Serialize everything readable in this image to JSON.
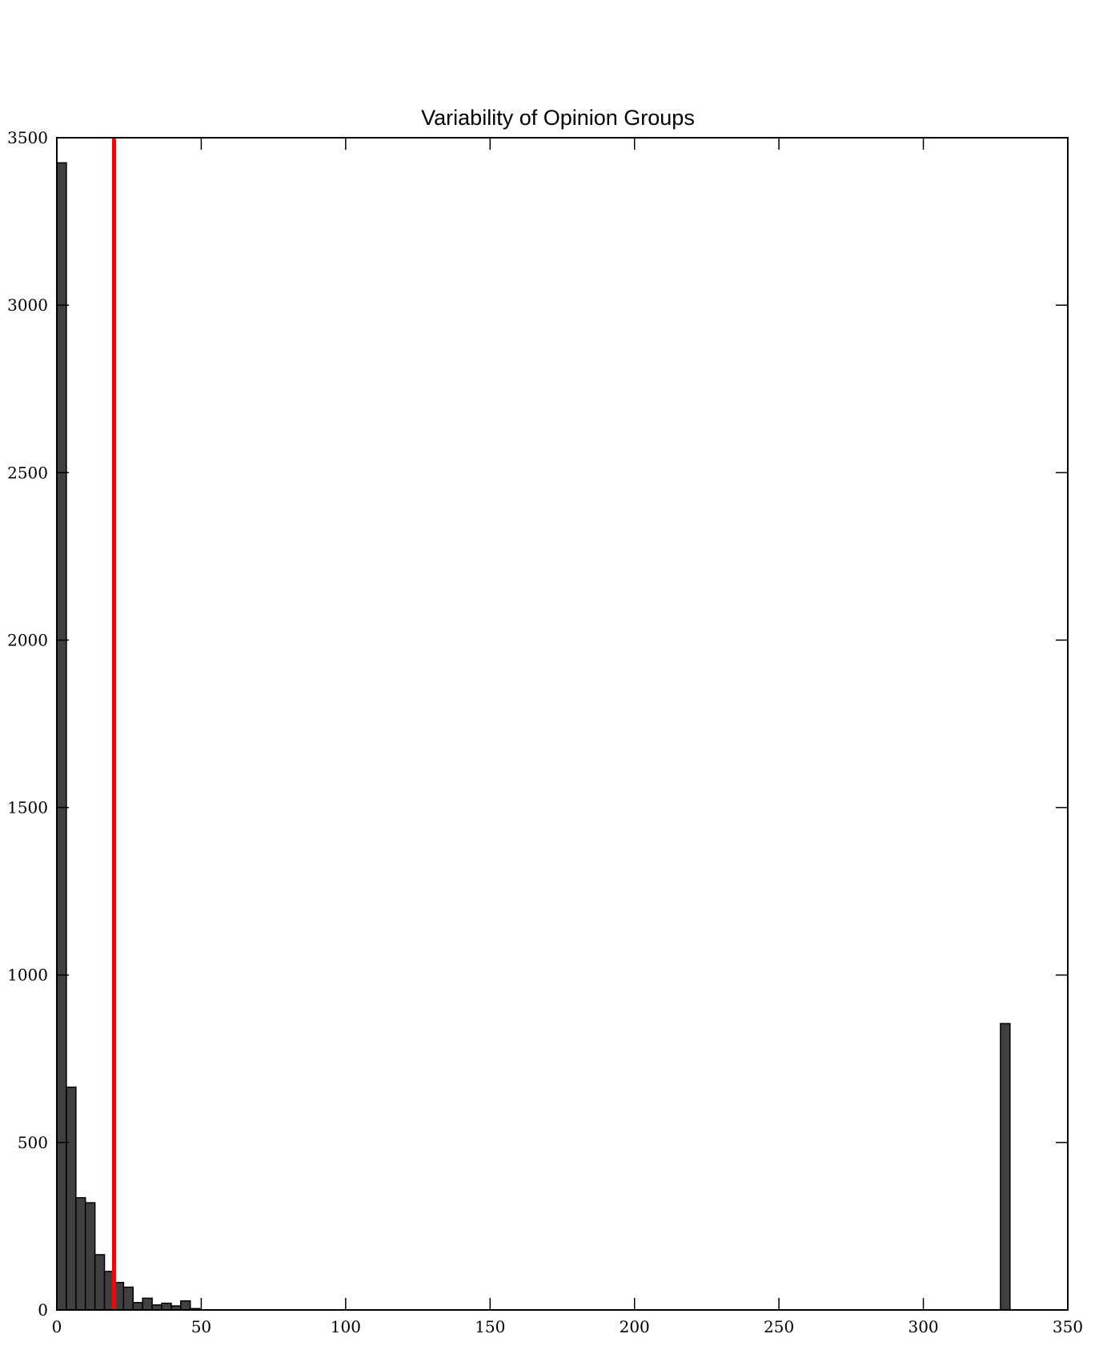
{
  "chart_data": {
    "type": "bar",
    "title": "Variability of Opinion Groups",
    "xlabel": "",
    "ylabel": "",
    "xlim": [
      0,
      350
    ],
    "ylim": [
      0,
      3500
    ],
    "xticks": [
      0,
      50,
      100,
      150,
      200,
      250,
      300,
      350
    ],
    "yticks": [
      0,
      500,
      1000,
      1500,
      2000,
      2500,
      3000,
      3500
    ],
    "grid": false,
    "bin_width": 3.3,
    "bins": [
      {
        "x": 0.0,
        "value": 3425
      },
      {
        "x": 3.3,
        "value": 665
      },
      {
        "x": 6.6,
        "value": 335
      },
      {
        "x": 9.9,
        "value": 320
      },
      {
        "x": 13.2,
        "value": 165
      },
      {
        "x": 16.5,
        "value": 115
      },
      {
        "x": 19.8,
        "value": 82
      },
      {
        "x": 23.1,
        "value": 68
      },
      {
        "x": 26.4,
        "value": 22
      },
      {
        "x": 29.7,
        "value": 35
      },
      {
        "x": 33.0,
        "value": 15
      },
      {
        "x": 36.3,
        "value": 20
      },
      {
        "x": 39.6,
        "value": 12
      },
      {
        "x": 42.9,
        "value": 27
      },
      {
        "x": 46.2,
        "value": 4
      },
      {
        "x": 326.7,
        "value": 855
      }
    ],
    "bar_color": "#404040",
    "bar_edge_color": "#000000",
    "reference_line": {
      "x": 19.8,
      "color": "#ff0000"
    }
  }
}
